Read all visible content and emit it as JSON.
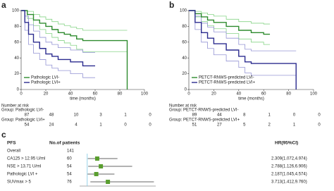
{
  "chart_data": [
    {
      "type": "line",
      "panel": "a",
      "x_label": "time (months)",
      "xlim": [
        0,
        100
      ],
      "xticks": [
        0,
        20,
        40,
        60,
        80,
        100
      ],
      "ylim": [
        0,
        100
      ],
      "yticks": [
        0,
        20,
        40,
        60,
        80,
        100
      ],
      "series": [
        {
          "name": "Pathologic LVI-",
          "color": "#2e8b2e",
          "x": [
            0,
            5,
            10,
            15,
            20,
            25,
            30,
            35,
            40,
            45,
            50,
            86
          ],
          "values": [
            100,
            95,
            88,
            84,
            80,
            76,
            72,
            70,
            68,
            64,
            62,
            0
          ]
        },
        {
          "name": "Pathologic LVI+",
          "color": "#2b2b8f",
          "x": [
            0,
            3,
            6,
            10,
            15,
            20,
            25,
            30,
            40,
            50,
            60
          ],
          "values": [
            100,
            85,
            70,
            60,
            52,
            45,
            42,
            38,
            35,
            30,
            30
          ]
        },
        {
          "color": "#86d486",
          "x": [
            0,
            5,
            10,
            15,
            20,
            25,
            30,
            35,
            40,
            45,
            50,
            86
          ],
          "values": [
            100,
            99,
            95,
            92,
            89,
            86,
            83,
            81,
            79,
            77,
            75,
            75
          ]
        },
        {
          "color": "#86d486",
          "x": [
            0,
            5,
            10,
            15,
            20,
            25,
            30,
            35,
            40,
            45,
            50,
            86
          ],
          "values": [
            100,
            90,
            81,
            76,
            71,
            66,
            62,
            59,
            56,
            51,
            48,
            48
          ]
        },
        {
          "color": "#9494d4",
          "x": [
            0,
            3,
            6,
            10,
            15,
            20,
            25,
            30,
            40,
            50,
            60
          ],
          "values": [
            100,
            93,
            82,
            74,
            66,
            60,
            57,
            53,
            50,
            47,
            47
          ]
        },
        {
          "color": "#9494d4",
          "x": [
            0,
            3,
            6,
            10,
            15,
            20,
            25,
            30,
            40,
            50,
            60
          ],
          "values": [
            100,
            75,
            57,
            46,
            38,
            31,
            27,
            24,
            20,
            15,
            15
          ]
        }
      ],
      "risk_title": "Number at risk",
      "risk": [
        {
          "label": "Group: Pathologic LVI-",
          "values": [
            87,
            48,
            10,
            3,
            1,
            0
          ]
        },
        {
          "label": "Group: Pathologic LVI+",
          "values": [
            54,
            24,
            4,
            1,
            0,
            0
          ]
        }
      ]
    },
    {
      "type": "line",
      "panel": "b",
      "x_label": "time (months)",
      "xlim": [
        0,
        100
      ],
      "xticks": [
        0,
        20,
        40,
        60,
        80,
        100
      ],
      "ylim": [
        0,
        100
      ],
      "yticks": [
        0,
        20,
        40,
        60,
        80,
        100
      ],
      "series": [
        {
          "name": "PETCT-RNWS-predicted LVI-",
          "color": "#2e8b2e",
          "x": [
            0,
            5,
            10,
            15,
            20,
            30,
            40,
            50,
            60,
            65
          ],
          "values": [
            100,
            96,
            92,
            88,
            85,
            80,
            75,
            72,
            70,
            70
          ]
        },
        {
          "name": "PETCT-RNWS-predicted LVI+",
          "color": "#2b2b8f",
          "x": [
            0,
            5,
            10,
            15,
            20,
            30,
            40,
            45,
            50,
            86
          ],
          "values": [
            100,
            85,
            72,
            65,
            58,
            50,
            42,
            35,
            33,
            0
          ]
        },
        {
          "color": "#86d486",
          "x": [
            0,
            5,
            10,
            15,
            20,
            30,
            40,
            50,
            60,
            65
          ],
          "values": [
            100,
            99,
            97,
            95,
            93,
            89,
            86,
            84,
            83,
            83
          ]
        },
        {
          "color": "#86d486",
          "x": [
            0,
            5,
            10,
            15,
            20,
            30,
            40,
            50,
            60,
            65
          ],
          "values": [
            100,
            92,
            86,
            81,
            77,
            71,
            64,
            60,
            57,
            57
          ]
        },
        {
          "color": "#9494d4",
          "x": [
            0,
            5,
            10,
            15,
            20,
            30,
            40,
            45,
            50,
            86
          ],
          "values": [
            100,
            93,
            84,
            79,
            73,
            65,
            57,
            51,
            49,
            49
          ]
        },
        {
          "color": "#9494d4",
          "x": [
            0,
            5,
            10,
            15,
            20,
            30,
            40,
            45,
            50,
            86
          ],
          "values": [
            100,
            76,
            60,
            52,
            44,
            36,
            28,
            21,
            18,
            18
          ]
        }
      ],
      "risk_title": "Number at risk",
      "risk": [
        {
          "label": "Group: PETCT-RNWS-predicted LVI-",
          "values": [
            89,
            44,
            8,
            1,
            0,
            0
          ]
        },
        {
          "label": "Group: PETCT-RNWS-predicted LVI+",
          "values": [
            51,
            27,
            5,
            2,
            1,
            0
          ]
        }
      ]
    },
    {
      "type": "forest",
      "panel": "c",
      "headers": [
        "PFS",
        "No.of patients",
        "HR(95%CI)"
      ],
      "categories": [
        "Overall",
        "CA125 > 12.95 U/ml",
        "NSE > 13.71 U/ml",
        "Pathologic LVI +",
        "SUVmax > 5"
      ],
      "patients": [
        141,
        60,
        54,
        54,
        76
      ],
      "values": [
        null,
        2.309,
        2.788,
        2.187,
        3.713
      ],
      "lower": [
        null,
        1.072,
        1.126,
        1.045,
        1.412
      ],
      "upper": [
        null,
        4.974,
        6.906,
        4.574,
        9.76
      ],
      "value_labels": [
        null,
        "2.309(1.072,4.974)",
        "2.788(1.126,6.906)",
        "2.187(1.045,4.574)",
        "3.713(1.412,9.760)"
      ],
      "xlim": [
        0,
        10
      ],
      "ref_line": 1,
      "color": "#5a9e2f"
    }
  ]
}
